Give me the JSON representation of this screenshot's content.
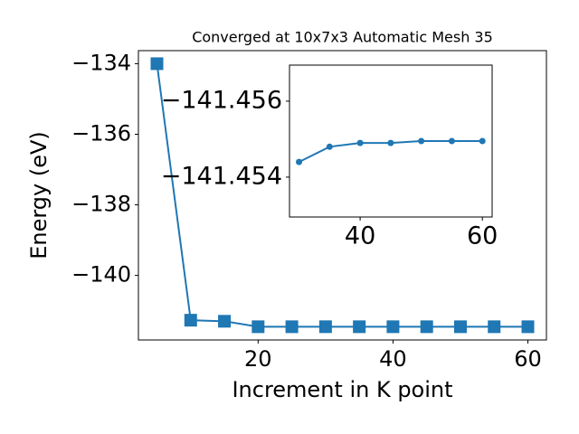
{
  "chart_data": [
    {
      "type": "line",
      "title": "Converged at 10x7x3 Automatic Mesh 35",
      "x_label": "Increment in K point",
      "y_label": "Energy (eV)",
      "x": [
        5,
        10,
        15,
        20,
        25,
        30,
        35,
        40,
        45,
        50,
        55,
        60
      ],
      "series": [
        {
          "name": "Energy",
          "color": "#1f77b4",
          "marker": "square",
          "values": [
            -134.0,
            -141.27,
            -141.3,
            -141.455,
            -141.455,
            -141.4544,
            -141.4548,
            -141.4549,
            -141.4549,
            -141.45495,
            -141.45495,
            -141.45495
          ]
        }
      ],
      "xlim": [
        2.25,
        62.75
      ],
      "xticks": [
        20,
        40,
        60
      ],
      "ylim": [
        -141.83,
        -133.63
      ],
      "yticks": [
        {
          "value": -134,
          "label": "−134"
        },
        {
          "value": -136,
          "label": "−136"
        },
        {
          "value": -138,
          "label": "−138"
        },
        {
          "value": -140,
          "label": "−140"
        }
      ]
    },
    {
      "type": "line",
      "x": [
        30,
        35,
        40,
        45,
        50,
        55,
        60
      ],
      "series": [
        {
          "name": "Energy",
          "color": "#1f77b4",
          "marker": "circle",
          "values": [
            -141.4544,
            -141.4548,
            -141.4549,
            -141.4549,
            -141.45495,
            -141.45495,
            -141.45495
          ]
        }
      ],
      "xlim": [
        28.44,
        61.6
      ],
      "xticks": [
        40,
        60
      ],
      "ylim": [
        -141.45295,
        -141.45695
      ],
      "yticks": [
        {
          "value": -141.456,
          "label": "−141.456"
        },
        {
          "value": -141.454,
          "label": "−141.454"
        }
      ]
    }
  ]
}
